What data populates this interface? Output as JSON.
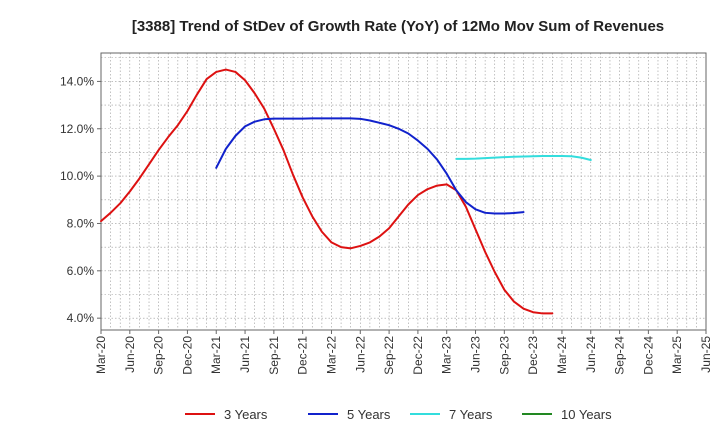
{
  "chart_data": {
    "type": "line",
    "title": "[3388]  Trend of StDev of Growth Rate (YoY) of 12Mo Mov Sum of Revenues",
    "xlabel": "",
    "ylabel": "",
    "ylim": [
      3.5,
      15.2
    ],
    "yticks": [
      4.0,
      6.0,
      8.0,
      10.0,
      12.0,
      14.0
    ],
    "ytick_labels": [
      "4.0%",
      "6.0%",
      "8.0%",
      "10.0%",
      "12.0%",
      "14.0%"
    ],
    "xtick_labels": [
      "Mar-20",
      "Jun-20",
      "Sep-20",
      "Dec-20",
      "Mar-21",
      "Jun-21",
      "Sep-21",
      "Dec-21",
      "Mar-22",
      "Jun-22",
      "Sep-22",
      "Dec-22",
      "Mar-23",
      "Jun-23",
      "Sep-23",
      "Dec-23",
      "Mar-24",
      "Jun-24",
      "Sep-24",
      "Dec-24",
      "Mar-25",
      "Jun-25"
    ],
    "x_index_range": [
      0,
      63
    ],
    "grid": true,
    "legend_position": "bottom",
    "series": [
      {
        "name": "3 Years",
        "color": "#dd1111",
        "start_index": 0,
        "values": [
          8.1,
          8.45,
          8.85,
          9.35,
          9.9,
          10.5,
          11.1,
          11.65,
          12.15,
          12.75,
          13.45,
          14.1,
          14.4,
          14.5,
          14.4,
          14.05,
          13.5,
          12.85,
          12.0,
          11.1,
          10.05,
          9.1,
          8.3,
          7.65,
          7.2,
          7.0,
          6.95,
          7.05,
          7.2,
          7.45,
          7.8,
          8.3,
          8.8,
          9.2,
          9.45,
          9.6,
          9.65,
          9.4,
          8.7,
          7.75,
          6.8,
          5.95,
          5.2,
          4.7,
          4.4,
          4.25,
          4.2,
          4.2
        ]
      },
      {
        "name": "5 Years",
        "color": "#1122cc",
        "start_index": 12,
        "values": [
          10.35,
          11.15,
          11.7,
          12.1,
          12.3,
          12.4,
          12.43,
          12.43,
          12.43,
          12.43,
          12.44,
          12.44,
          12.44,
          12.44,
          12.44,
          12.42,
          12.35,
          12.25,
          12.15,
          12.0,
          11.8,
          11.5,
          11.15,
          10.7,
          10.1,
          9.4,
          8.9,
          8.6,
          8.45,
          8.42,
          8.42,
          8.44,
          8.48
        ]
      },
      {
        "name": "7 Years",
        "color": "#33dddd",
        "start_index": 37,
        "values": [
          10.73,
          10.73,
          10.74,
          10.76,
          10.78,
          10.8,
          10.82,
          10.83,
          10.84,
          10.85,
          10.85,
          10.85,
          10.84,
          10.78,
          10.68
        ]
      },
      {
        "name": "10 Years",
        "color": "#228822",
        "start_index": 0,
        "values": []
      }
    ]
  }
}
